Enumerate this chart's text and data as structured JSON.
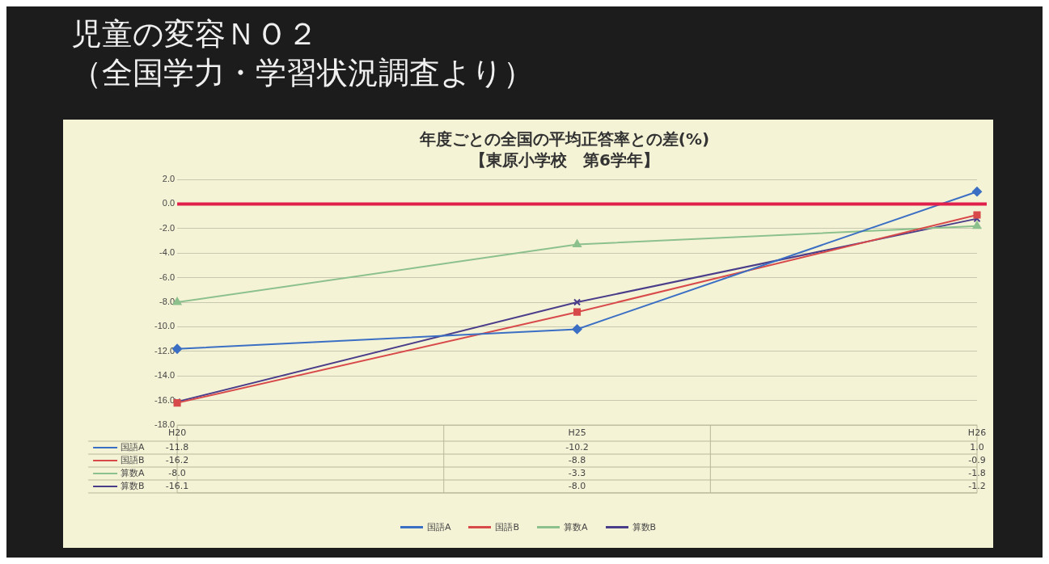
{
  "chart_data": {
    "type": "line",
    "title": "年度ごとの全国の平均正答率との差(%)",
    "subtitle": "【東原小学校　第6学年】",
    "annotations": [
      "児童の変容ＮＯ２",
      "（全国学力・学習状況調査より）"
    ],
    "categories": [
      "H20",
      "H25",
      "H26"
    ],
    "series": [
      {
        "name": "国語A",
        "color": "#3b6fc4",
        "marker": "diamond",
        "values": [
          -11.8,
          -10.2,
          1.0
        ],
        "value_labels": [
          "-11.8",
          "-10.2",
          "1.0"
        ]
      },
      {
        "name": "国語B",
        "color": "#d84a4a",
        "marker": "square",
        "values": [
          -16.2,
          -8.8,
          -0.9
        ],
        "value_labels": [
          "-16.2",
          "-8.8",
          "-0.9"
        ]
      },
      {
        "name": "算数A",
        "color": "#8cc08c",
        "marker": "triangle",
        "values": [
          -8.0,
          -3.3,
          -1.8
        ],
        "value_labels": [
          "-8.0",
          "-3.3",
          "-1.8"
        ]
      },
      {
        "name": "算数B",
        "color": "#4a3d8a",
        "marker": "cross",
        "values": [
          -16.1,
          -8.0,
          -1.2
        ],
        "value_labels": [
          "-16.1",
          "-8.0",
          "-1.2"
        ]
      }
    ],
    "ylim": [
      -18,
      2
    ],
    "yticks": [
      {
        "value": -18,
        "label": "-18.0"
      },
      {
        "value": -16,
        "label": "-16.0"
      },
      {
        "value": -14,
        "label": "-14.0"
      },
      {
        "value": -12,
        "label": "-12.0"
      },
      {
        "value": -10,
        "label": "-10.0"
      },
      {
        "value": -8,
        "label": "-8.0"
      },
      {
        "value": -6,
        "label": "-6.0"
      },
      {
        "value": -4,
        "label": "-4.0"
      },
      {
        "value": -2,
        "label": "-2.0"
      },
      {
        "value": 0,
        "label": "0.0"
      },
      {
        "value": 2,
        "label": "2.0"
      }
    ],
    "ref_lines": [
      {
        "axis": "y",
        "value": 0,
        "color": "#e0204a"
      }
    ],
    "grid": "y",
    "legend": "bottom"
  }
}
